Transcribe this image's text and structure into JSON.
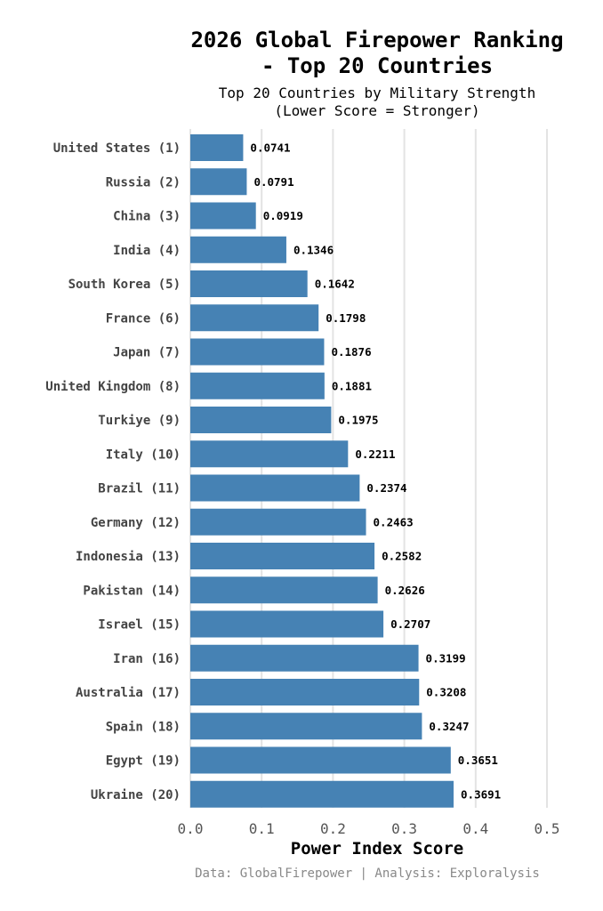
{
  "chart_data": {
    "type": "bar",
    "orientation": "horizontal",
    "title_lines": [
      "2026 Global Firepower Ranking",
      "- Top 20 Countries"
    ],
    "subtitle_lines": [
      "Top 20 Countries by Military Strength",
      "(Lower Score = Stronger)"
    ],
    "xlabel": "Power Index Score",
    "caption": "Data: GlobalFirepower | Analysis: Exploralysis",
    "xlim": [
      0,
      0.5
    ],
    "xticks": [
      0.0,
      0.1,
      0.2,
      0.3,
      0.4,
      0.5
    ],
    "xtick_labels": [
      "0.0",
      "0.1",
      "0.2",
      "0.3",
      "0.4",
      "0.5"
    ],
    "grid": "vertical",
    "bar_color": "#4682b4",
    "categories": [
      "United States (1)",
      "Russia (2)",
      "China (3)",
      "India (4)",
      "South Korea (5)",
      "France (6)",
      "Japan (7)",
      "United Kingdom (8)",
      "Turkiye (9)",
      "Italy (10)",
      "Brazil (11)",
      "Germany (12)",
      "Indonesia (13)",
      "Pakistan (14)",
      "Israel (15)",
      "Iran (16)",
      "Australia (17)",
      "Spain (18)",
      "Egypt (19)",
      "Ukraine (20)"
    ],
    "values": [
      0.0741,
      0.0791,
      0.0919,
      0.1346,
      0.1642,
      0.1798,
      0.1876,
      0.1881,
      0.1975,
      0.2211,
      0.2374,
      0.2463,
      0.2582,
      0.2626,
      0.2707,
      0.3199,
      0.3208,
      0.3247,
      0.3651,
      0.3691
    ],
    "value_labels": [
      "0.0741",
      "0.0791",
      "0.0919",
      "0.1346",
      "0.1642",
      "0.1798",
      "0.1876",
      "0.1881",
      "0.1975",
      "0.2211",
      "0.2374",
      "0.2463",
      "0.2582",
      "0.2626",
      "0.2707",
      "0.3199",
      "0.3208",
      "0.3247",
      "0.3651",
      "0.3691"
    ]
  }
}
